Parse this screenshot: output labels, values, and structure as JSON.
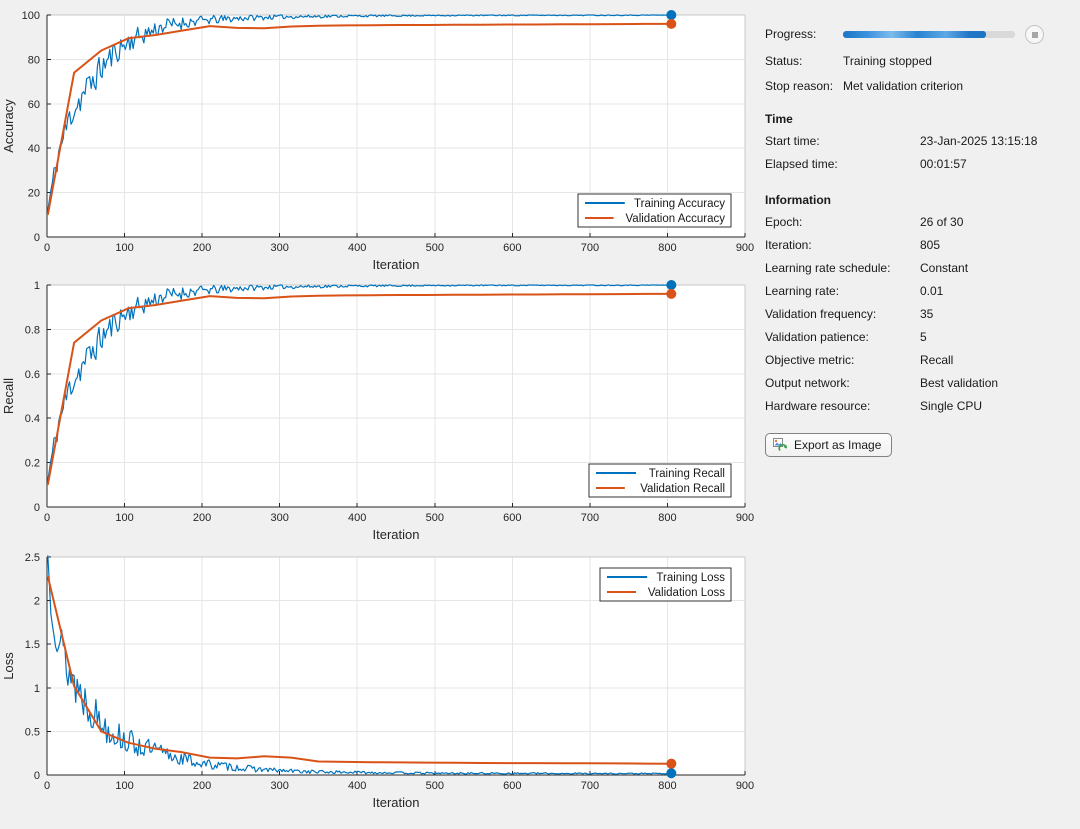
{
  "window_title": "Training Progress",
  "colors": {
    "background": "#f0f0f0",
    "training_line": "#0072BD",
    "validation_line": "#D95319",
    "axis": "#262626",
    "grid": "#e6e6e6",
    "box_light": "#c9c9c9",
    "plot_bg": "#ffffff",
    "progress_fill": "#2a83d0",
    "progress_track": "#d9d9d9"
  },
  "chart_data": [
    {
      "type": "line",
      "ylabel": "Accuracy",
      "xlabel": "Iteration",
      "xlim": [
        0,
        900
      ],
      "ylim": [
        0,
        100
      ],
      "xticks": [
        0,
        100,
        200,
        300,
        400,
        500,
        600,
        700,
        800,
        900
      ],
      "yticks": [
        0,
        20,
        40,
        60,
        80,
        100
      ],
      "ytick_labels": [
        "0",
        "20",
        "40",
        "60",
        "80",
        "100"
      ],
      "grid": true,
      "legend": {
        "position": "southeast",
        "entries": [
          "Training Accuracy",
          "Validation Accuracy"
        ]
      },
      "series": [
        {
          "name": "Training Accuracy",
          "color": "#0072BD",
          "style": "noisy",
          "trend_x": [
            1,
            5,
            15,
            30,
            50,
            70,
            90,
            110,
            130,
            150,
            175,
            200,
            250,
            300,
            400,
            500,
            650,
            805
          ],
          "trend_y": [
            12,
            20,
            38,
            55,
            66,
            76,
            84,
            89,
            92,
            95,
            96.5,
            97.5,
            98.6,
            99.2,
            99.6,
            99.8,
            99.9,
            100
          ],
          "noise_x": [
            1,
            30,
            60,
            100,
            150,
            200,
            250,
            300,
            400,
            500,
            805
          ],
          "noise_amp": [
            5,
            7,
            7,
            5,
            3.5,
            2.2,
            1.5,
            1.0,
            0.5,
            0.3,
            0.25
          ],
          "x_step": 2,
          "x_end": 805,
          "seed": 11,
          "clip": [
            0,
            100
          ]
        },
        {
          "name": "Validation Accuracy",
          "color": "#D95319",
          "style": "poly",
          "x": [
            1,
            35,
            70,
            105,
            140,
            175,
            210,
            245,
            280,
            315,
            350,
            385,
            420,
            455,
            490,
            525,
            560,
            595,
            630,
            665,
            700,
            735,
            770,
            805
          ],
          "y": [
            10,
            74,
            84,
            89.5,
            91,
            93,
            95,
            94.2,
            94,
            94.8,
            95.2,
            95.3,
            95.4,
            95.5,
            95.5,
            95.6,
            95.6,
            95.7,
            95.7,
            95.8,
            95.8,
            95.9,
            96,
            96
          ]
        }
      ],
      "end_markers": [
        {
          "x": 805,
          "y": 100,
          "color": "#0072BD"
        },
        {
          "x": 805,
          "y": 96,
          "color": "#D95319"
        }
      ]
    },
    {
      "type": "line",
      "ylabel": "Recall",
      "xlabel": "Iteration",
      "xlim": [
        0,
        900
      ],
      "ylim": [
        0,
        1
      ],
      "xticks": [
        0,
        100,
        200,
        300,
        400,
        500,
        600,
        700,
        800,
        900
      ],
      "yticks": [
        0,
        0.2,
        0.4,
        0.6,
        0.8,
        1
      ],
      "ytick_labels": [
        "0",
        "0.2",
        "0.4",
        "0.6",
        "0.8",
        "1"
      ],
      "grid": true,
      "legend": {
        "position": "southeast",
        "entries": [
          "Training Recall",
          "Validation Recall"
        ]
      },
      "series": [
        {
          "name": "Training Recall",
          "color": "#0072BD",
          "style": "noisy",
          "trend_x": [
            1,
            5,
            15,
            30,
            50,
            70,
            90,
            110,
            130,
            150,
            175,
            200,
            250,
            300,
            400,
            500,
            650,
            805
          ],
          "trend_y": [
            0.12,
            0.2,
            0.38,
            0.55,
            0.66,
            0.76,
            0.84,
            0.89,
            0.92,
            0.95,
            0.965,
            0.975,
            0.986,
            0.992,
            0.996,
            0.998,
            0.999,
            1.0
          ],
          "noise_x": [
            1,
            30,
            60,
            100,
            150,
            200,
            250,
            300,
            400,
            500,
            805
          ],
          "noise_amp": [
            0.05,
            0.07,
            0.07,
            0.05,
            0.035,
            0.022,
            0.015,
            0.01,
            0.005,
            0.003,
            0.0025
          ],
          "x_step": 2,
          "x_end": 805,
          "seed": 11,
          "clip": [
            0,
            1
          ]
        },
        {
          "name": "Validation Recall",
          "color": "#D95319",
          "style": "poly",
          "x": [
            1,
            35,
            70,
            105,
            140,
            175,
            210,
            245,
            280,
            315,
            350,
            385,
            420,
            455,
            490,
            525,
            560,
            595,
            630,
            665,
            700,
            735,
            770,
            805
          ],
          "y": [
            0.1,
            0.74,
            0.84,
            0.895,
            0.91,
            0.93,
            0.95,
            0.942,
            0.94,
            0.948,
            0.952,
            0.953,
            0.954,
            0.955,
            0.955,
            0.956,
            0.956,
            0.957,
            0.957,
            0.958,
            0.958,
            0.959,
            0.96,
            0.96
          ]
        }
      ],
      "end_markers": [
        {
          "x": 805,
          "y": 1.0,
          "color": "#0072BD"
        },
        {
          "x": 805,
          "y": 0.96,
          "color": "#D95319"
        }
      ]
    },
    {
      "type": "line",
      "ylabel": "Loss",
      "xlabel": "Iteration",
      "xlim": [
        0,
        900
      ],
      "ylim": [
        0,
        2.5
      ],
      "xticks": [
        0,
        100,
        200,
        300,
        400,
        500,
        600,
        700,
        800,
        900
      ],
      "yticks": [
        0,
        0.5,
        1,
        1.5,
        2,
        2.5
      ],
      "ytick_labels": [
        "0",
        "0.5",
        "1",
        "1.5",
        "2",
        "2.5"
      ],
      "grid": true,
      "legend": {
        "position": "northeast",
        "entries": [
          "Training Loss",
          "Validation Loss"
        ]
      },
      "series": [
        {
          "name": "Training Loss",
          "color": "#0072BD",
          "style": "noisy",
          "trend_x": [
            1,
            5,
            15,
            30,
            50,
            70,
            100,
            130,
            160,
            200,
            250,
            300,
            350,
            400,
            500,
            650,
            805
          ],
          "trend_y": [
            2.5,
            2.1,
            1.55,
            1.15,
            0.85,
            0.6,
            0.4,
            0.3,
            0.22,
            0.13,
            0.08,
            0.05,
            0.035,
            0.03,
            0.02,
            0.018,
            0.015
          ],
          "noise_x": [
            1,
            30,
            60,
            100,
            150,
            200,
            250,
            300,
            400,
            500,
            805
          ],
          "noise_amp": [
            0.3,
            0.3,
            0.22,
            0.15,
            0.1,
            0.06,
            0.04,
            0.025,
            0.015,
            0.01,
            0.008
          ],
          "x_step": 2,
          "x_end": 805,
          "seed": 13,
          "clip": [
            0.01,
            2.52
          ]
        },
        {
          "name": "Validation Loss",
          "color": "#D95319",
          "style": "poly",
          "x": [
            1,
            35,
            70,
            105,
            140,
            175,
            210,
            245,
            280,
            315,
            350,
            385,
            420,
            455,
            490,
            525,
            560,
            595,
            630,
            665,
            700,
            735,
            770,
            805
          ],
          "y": [
            2.28,
            1.02,
            0.5,
            0.37,
            0.3,
            0.26,
            0.2,
            0.19,
            0.215,
            0.2,
            0.155,
            0.15,
            0.147,
            0.144,
            0.142,
            0.14,
            0.138,
            0.137,
            0.136,
            0.135,
            0.134,
            0.133,
            0.131,
            0.13
          ]
        }
      ],
      "end_markers": [
        {
          "x": 805,
          "y": 0.13,
          "color": "#D95319"
        },
        {
          "x": 805,
          "y": 0.02,
          "color": "#0072BD"
        }
      ]
    }
  ],
  "panel": {
    "progress": {
      "label": "Progress:",
      "percent": 83
    },
    "status": {
      "label": "Status:",
      "value": "Training stopped"
    },
    "stop_reason": {
      "label": "Stop reason:",
      "value": "Met validation criterion"
    },
    "time_section": {
      "header": "Time",
      "rows": [
        {
          "label": "Start time:",
          "value": "23-Jan-2025 13:15:18"
        },
        {
          "label": "Elapsed time:",
          "value": "00:01:57"
        }
      ]
    },
    "info_section": {
      "header": "Information",
      "rows": [
        {
          "label": "Epoch:",
          "value": "26 of 30"
        },
        {
          "label": "Iteration:",
          "value": "805"
        },
        {
          "label": "Learning rate schedule:",
          "value": "Constant"
        },
        {
          "label": "Learning rate:",
          "value": "0.01"
        },
        {
          "label": "Validation frequency:",
          "value": "35"
        },
        {
          "label": "Validation patience:",
          "value": "5"
        },
        {
          "label": "Objective metric:",
          "value": "Recall"
        },
        {
          "label": "Output network:",
          "value": "Best validation"
        },
        {
          "label": "Hardware resource:",
          "value": "Single CPU"
        }
      ]
    },
    "export_button": {
      "label": "Export as Image",
      "icon": "export-image-icon"
    },
    "stop_button": {
      "icon": "stop-icon"
    }
  }
}
